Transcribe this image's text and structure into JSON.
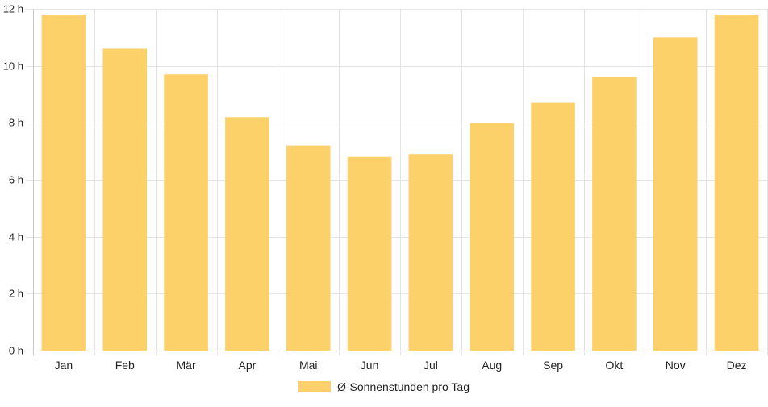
{
  "chart_data": {
    "type": "bar",
    "categories": [
      "Jan",
      "Feb",
      "Mär",
      "Apr",
      "Mai",
      "Jun",
      "Jul",
      "Aug",
      "Sep",
      "Okt",
      "Nov",
      "Dez"
    ],
    "series": [
      {
        "name": "Ø-Sonnenstunden pro Tag",
        "values": [
          11.8,
          10.6,
          9.7,
          8.2,
          7.2,
          6.8,
          6.9,
          8.0,
          8.7,
          9.6,
          11.0,
          11.8
        ],
        "color": "#fdd16a"
      }
    ],
    "y_ticks": [
      "0 h",
      "2 h",
      "4 h",
      "6 h",
      "8 h",
      "10 h",
      "12 h"
    ],
    "ylim": [
      0,
      12
    ],
    "grid": true,
    "legend_position": "bottom-center",
    "gridline_color": "#e4e4e4",
    "axis_color": "#c8c8c8",
    "label_color": "#222222"
  }
}
